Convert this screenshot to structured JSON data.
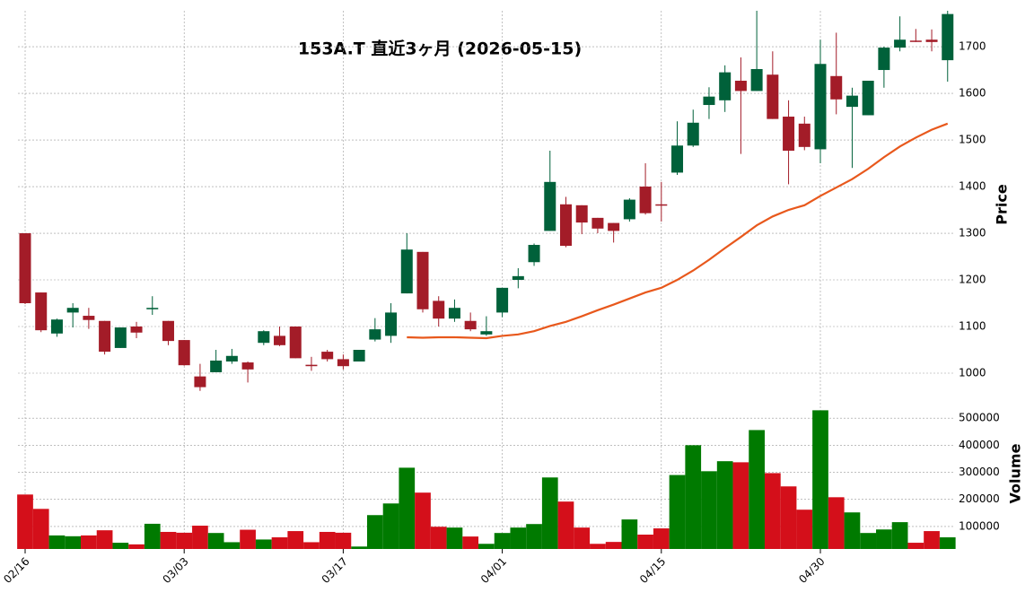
{
  "chart_data": [
    {
      "type": "candlestick",
      "title": "153A.T  直近3ヶ月  (2026-05-15)",
      "ylabel": "Price",
      "up_color": "#00613a",
      "down_color": "#a31c28",
      "open": [
        1300,
        1173,
        1085,
        1130,
        1123,
        1112,
        1054,
        1100,
        1137,
        1112,
        1071,
        993,
        1002,
        1025,
        1023,
        1065,
        1080,
        1100,
        1018,
        1046,
        1030,
        1025,
        1072,
        1080,
        1171,
        1260,
        1155,
        1117,
        1112,
        1083,
        1130,
        1200,
        1238,
        1305,
        1362,
        1360,
        1333,
        1322,
        1330,
        1400,
        1362,
        1430,
        1488,
        1575,
        1585,
        1627,
        1605,
        1640,
        1550,
        1535,
        1480,
        1637,
        1571,
        1553,
        1650,
        1698,
        1713,
        1715,
        1671
      ],
      "high": [
        1300,
        1173,
        1117,
        1150,
        1140,
        1112,
        1098,
        1110,
        1165,
        1112,
        1071,
        1020,
        1050,
        1052,
        1025,
        1092,
        1100,
        1100,
        1035,
        1050,
        1040,
        1050,
        1118,
        1150,
        1300,
        1260,
        1165,
        1158,
        1130,
        1122,
        1183,
        1225,
        1278,
        1477,
        1378,
        1360,
        1333,
        1322,
        1375,
        1450,
        1410,
        1540,
        1565,
        1613,
        1660,
        1677,
        1777,
        1690,
        1585,
        1550,
        1715,
        1730,
        1612,
        1627,
        1700,
        1765,
        1738,
        1737,
        1777
      ],
      "low": [
        1148,
        1088,
        1078,
        1098,
        1095,
        1040,
        1054,
        1075,
        1125,
        1060,
        1016,
        962,
        1002,
        1020,
        980,
        1060,
        1058,
        1032,
        1005,
        1025,
        1008,
        1025,
        1068,
        1065,
        1171,
        1130,
        1100,
        1110,
        1090,
        1080,
        1120,
        1182,
        1230,
        1305,
        1270,
        1298,
        1300,
        1280,
        1325,
        1340,
        1325,
        1425,
        1485,
        1545,
        1560,
        1470,
        1605,
        1545,
        1405,
        1478,
        1450,
        1555,
        1440,
        1553,
        1612,
        1690,
        1710,
        1690,
        1625
      ],
      "close": [
        1150,
        1092,
        1115,
        1140,
        1114,
        1046,
        1098,
        1087,
        1140,
        1069,
        1017,
        970,
        1027,
        1037,
        1008,
        1090,
        1060,
        1032,
        1015,
        1030,
        1015,
        1050,
        1094,
        1130,
        1265,
        1137,
        1117,
        1140,
        1094,
        1090,
        1183,
        1208,
        1275,
        1410,
        1273,
        1323,
        1310,
        1305,
        1372,
        1343,
        1360,
        1488,
        1537,
        1593,
        1645,
        1605,
        1652,
        1545,
        1477,
        1485,
        1663,
        1587,
        1595,
        1627,
        1698,
        1715,
        1711,
        1710,
        1770
      ],
      "series": [
        {
          "color": "#e8581c",
          "values": [
            null,
            null,
            null,
            null,
            null,
            null,
            null,
            null,
            null,
            null,
            null,
            null,
            null,
            null,
            null,
            null,
            null,
            null,
            null,
            null,
            null,
            null,
            null,
            null,
            1077,
            1076,
            1077,
            1077,
            1076,
            1075,
            1080,
            1083,
            1090,
            1101,
            1110,
            1122,
            1135,
            1147,
            1160,
            1173,
            1183,
            1200,
            1220,
            1243,
            1268,
            1292,
            1317,
            1336,
            1350,
            1360,
            1380,
            1398,
            1416,
            1438,
            1463,
            1486,
            1505,
            1522,
            1535
          ]
        }
      ],
      "ylim": [
        950,
        1777
      ],
      "yticks": [
        1000,
        1100,
        1200,
        1300,
        1400,
        1500,
        1600,
        1700
      ],
      "grid": true
    },
    {
      "type": "bar",
      "ylabel": "Volume",
      "up_color": "#007a00",
      "down_color": "#d40f1a",
      "categories": [
        "02/16",
        null,
        null,
        null,
        null,
        null,
        null,
        null,
        null,
        null,
        "03/03",
        null,
        null,
        null,
        null,
        null,
        null,
        null,
        null,
        null,
        "03/17",
        null,
        null,
        null,
        null,
        null,
        null,
        null,
        null,
        null,
        "04/01",
        null,
        null,
        null,
        null,
        null,
        null,
        null,
        null,
        null,
        "04/15",
        null,
        null,
        null,
        null,
        null,
        null,
        null,
        null,
        null,
        "04/30",
        null,
        null,
        null,
        null,
        null,
        null,
        null,
        null
      ],
      "values": [
        218000,
        165000,
        67000,
        64000,
        67000,
        86000,
        40000,
        34000,
        110000,
        80000,
        77000,
        103000,
        76000,
        42000,
        88000,
        52000,
        60000,
        83000,
        42000,
        80000,
        77000,
        26000,
        142000,
        185000,
        317000,
        225000,
        99000,
        96000,
        63000,
        36000,
        76000,
        96000,
        109000,
        281000,
        192000,
        96000,
        36000,
        43000,
        126000,
        70000,
        93000,
        290000,
        400000,
        304000,
        341000,
        337000,
        456000,
        297000,
        248000,
        162000,
        529000,
        208000,
        152000,
        76000,
        89000,
        116000,
        40000,
        83000,
        60000
      ],
      "ylim": [
        17000,
        570000
      ],
      "yticks": [
        100000,
        200000,
        300000,
        400000,
        500000
      ],
      "grid": true
    }
  ]
}
